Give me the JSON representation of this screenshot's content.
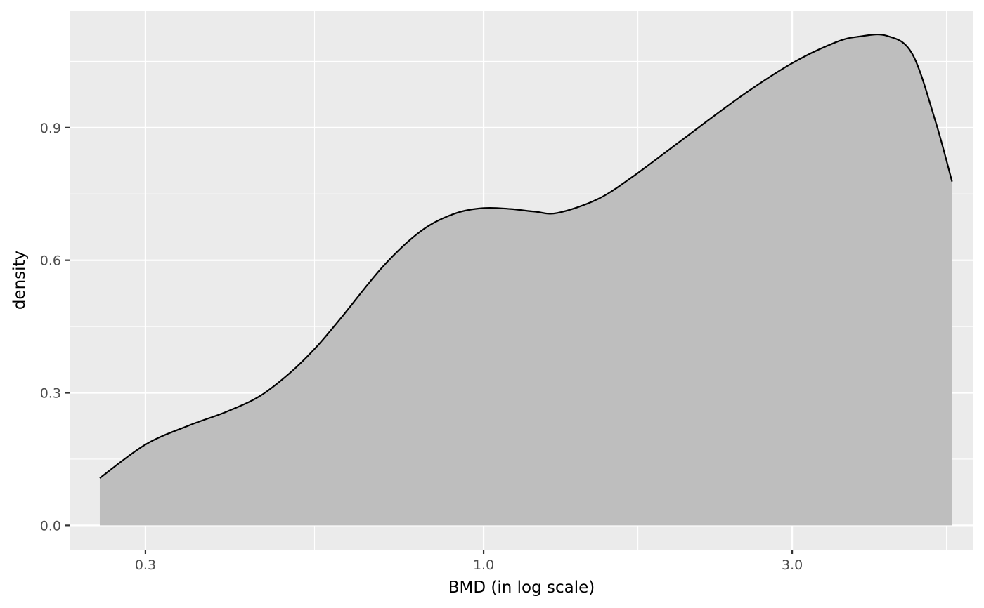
{
  "chart_data": {
    "type": "area",
    "title": "",
    "xlabel": "BMD (in log scale)",
    "ylabel": "density",
    "x_scale": "log10",
    "xlim": [
      0.229,
      5.72
    ],
    "ylim": [
      -0.055,
      1.165
    ],
    "x_ticks": [
      {
        "value": 0.3,
        "label": "0.3"
      },
      {
        "value": 1.0,
        "label": "1.0"
      },
      {
        "value": 3.0,
        "label": "3.0"
      }
    ],
    "y_ticks": [
      {
        "value": 0.0,
        "label": "0.0"
      },
      {
        "value": 0.3,
        "label": "0.3"
      },
      {
        "value": 0.6,
        "label": "0.6"
      },
      {
        "value": 0.9,
        "label": "0.9"
      }
    ],
    "grid": true,
    "fill_color": "#bebebe",
    "line_color": "#000000",
    "panel_color": "#ebebeb",
    "grid_color": "#ffffff",
    "series": [
      {
        "x": [
          0.255,
          0.3,
          0.35,
          0.4,
          0.45,
          0.5,
          0.55,
          0.6,
          0.7,
          0.8,
          0.9,
          1.0,
          1.1,
          1.2,
          1.3,
          1.5,
          1.7,
          2.0,
          2.5,
          3.0,
          3.5,
          3.8,
          4.2,
          4.6,
          5.0,
          5.3
        ],
        "y": [
          0.107,
          0.183,
          0.226,
          0.257,
          0.292,
          0.343,
          0.402,
          0.467,
          0.587,
          0.666,
          0.705,
          0.718,
          0.716,
          0.71,
          0.707,
          0.738,
          0.789,
          0.866,
          0.971,
          1.046,
          1.093,
          1.106,
          1.108,
          1.067,
          0.913,
          0.778
        ]
      }
    ]
  }
}
